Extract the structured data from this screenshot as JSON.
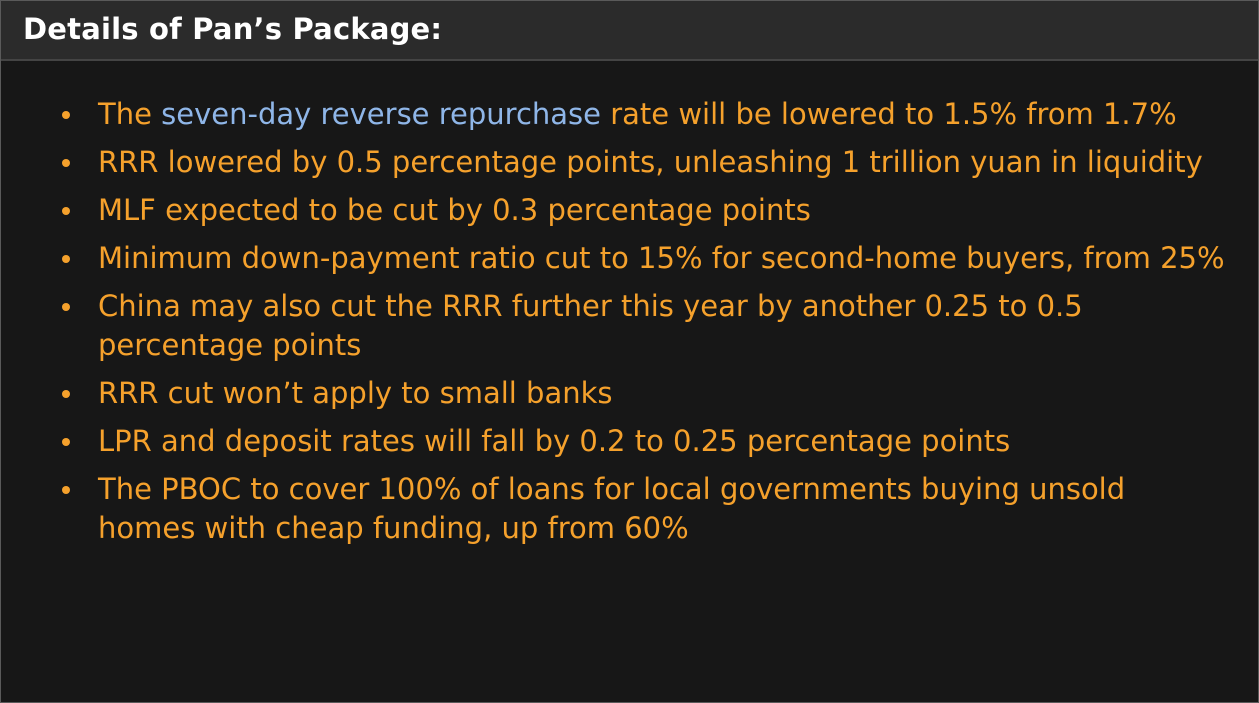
{
  "header": {
    "title": "Details of Pan’s Package:"
  },
  "items": [
    {
      "text_before": "The ",
      "link": "seven-day reverse repurchase",
      "text_after": " rate will be lowered to 1.5% from 1.7%"
    },
    {
      "text": "RRR lowered by 0.5 percentage points, unleashing 1 trillion yuan in liquidity"
    },
    {
      "text": "MLF expected to be cut by 0.3 percentage points"
    },
    {
      "text": "Minimum down-payment ratio cut to 15% for second-home buyers, from 25%"
    },
    {
      "text": "China may also cut the RRR further this year by another 0.25 to 0.5 percentage points"
    },
    {
      "text": "RRR cut won’t apply to small banks"
    },
    {
      "text": "LPR and deposit rates will fall by 0.2 to 0.25 percentage points"
    },
    {
      "text": "The PBOC to cover 100% of loans for local governments buying unsold homes with cheap funding, up from 60%"
    }
  ]
}
